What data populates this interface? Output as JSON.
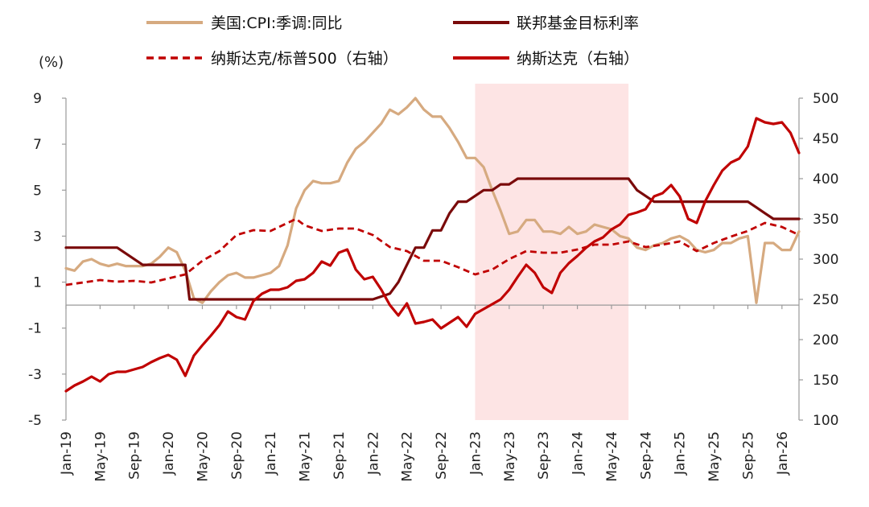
{
  "chart_data": {
    "type": "line",
    "unit_left": "(%)",
    "left_axis": {
      "min": -5,
      "max": 9,
      "ticks": [
        9,
        7,
        5,
        3,
        1,
        -1,
        -3,
        -5
      ]
    },
    "right_axis": {
      "min": 100,
      "max": 500,
      "ticks": [
        500,
        450,
        400,
        350,
        300,
        250,
        200,
        150,
        100
      ]
    },
    "x_ticks": [
      "Jan-19",
      "May-19",
      "Sep-19",
      "Jan-20",
      "May-20",
      "Sep-20",
      "Jan-21",
      "May-21",
      "Sep-21",
      "Jan-22",
      "May-22",
      "Sep-22",
      "Jan-23",
      "May-23",
      "Sep-23",
      "Jan-24",
      "May-24",
      "Sep-24",
      "Jan-25",
      "May-25",
      "Sep-25",
      "Jan-26"
    ],
    "shaded_region": {
      "start_month": 48,
      "end_month": 66,
      "color": "#fde4e4"
    },
    "zero_line": 0,
    "legend": [
      {
        "label": "美国:CPI:季调:同比",
        "color": "#d6aa80",
        "style": "solid"
      },
      {
        "label": "联邦基金目标利率",
        "color": "#7a0a0a",
        "style": "solid"
      },
      {
        "label": "纳斯达克/标普500（右轴）",
        "color": "#c00000",
        "style": "dashed"
      },
      {
        "label": "纳斯达克（右轴）",
        "color": "#c00000",
        "style": "solid"
      }
    ],
    "series": [
      {
        "name": "美国:CPI:季调:同比",
        "axis": "left",
        "color": "#d6aa80",
        "width": 3.2,
        "dash": "",
        "points": [
          [
            0,
            1.6
          ],
          [
            1,
            1.5
          ],
          [
            2,
            1.9
          ],
          [
            3,
            2.0
          ],
          [
            4,
            1.8
          ],
          [
            5,
            1.7
          ],
          [
            6,
            1.8
          ],
          [
            7,
            1.7
          ],
          [
            8,
            1.7
          ],
          [
            9,
            1.7
          ],
          [
            10,
            1.8
          ],
          [
            11,
            2.1
          ],
          [
            12,
            2.5
          ],
          [
            13,
            2.3
          ],
          [
            14,
            1.5
          ],
          [
            15,
            0.3
          ],
          [
            16,
            0.1
          ],
          [
            17,
            0.6
          ],
          [
            18,
            1.0
          ],
          [
            19,
            1.3
          ],
          [
            20,
            1.4
          ],
          [
            21,
            1.2
          ],
          [
            22,
            1.2
          ],
          [
            23,
            1.3
          ],
          [
            24,
            1.4
          ],
          [
            25,
            1.7
          ],
          [
            26,
            2.6
          ],
          [
            27,
            4.2
          ],
          [
            28,
            5.0
          ],
          [
            29,
            5.4
          ],
          [
            30,
            5.3
          ],
          [
            31,
            5.3
          ],
          [
            32,
            5.4
          ],
          [
            33,
            6.2
          ],
          [
            34,
            6.8
          ],
          [
            35,
            7.1
          ],
          [
            36,
            7.5
          ],
          [
            37,
            7.9
          ],
          [
            38,
            8.5
          ],
          [
            39,
            8.3
          ],
          [
            40,
            8.6
          ],
          [
            41,
            9.0
          ],
          [
            42,
            8.5
          ],
          [
            43,
            8.2
          ],
          [
            44,
            8.2
          ],
          [
            45,
            7.7
          ],
          [
            46,
            7.1
          ],
          [
            47,
            6.4
          ],
          [
            48,
            6.4
          ],
          [
            49,
            6.0
          ],
          [
            50,
            5.0
          ],
          [
            51,
            4.1
          ],
          [
            52,
            3.1
          ],
          [
            53,
            3.2
          ],
          [
            54,
            3.7
          ],
          [
            55,
            3.7
          ],
          [
            56,
            3.2
          ],
          [
            57,
            3.2
          ],
          [
            58,
            3.1
          ],
          [
            59,
            3.4
          ],
          [
            60,
            3.1
          ],
          [
            61,
            3.2
          ],
          [
            62,
            3.5
          ],
          [
            63,
            3.4
          ],
          [
            64,
            3.3
          ],
          [
            65,
            3.0
          ],
          [
            66,
            2.9
          ],
          [
            67,
            2.5
          ],
          [
            68,
            2.4
          ],
          [
            69,
            2.6
          ],
          [
            70,
            2.7
          ],
          [
            71,
            2.9
          ],
          [
            72,
            3.0
          ],
          [
            73,
            2.8
          ],
          [
            74,
            2.4
          ],
          [
            75,
            2.3
          ],
          [
            76,
            2.4
          ],
          [
            77,
            2.7
          ],
          [
            78,
            2.7
          ],
          [
            79,
            2.9
          ],
          [
            80,
            3.0
          ],
          [
            81,
            0.1
          ],
          [
            82,
            2.7
          ],
          [
            83,
            2.7
          ],
          [
            84,
            2.4
          ],
          [
            85,
            2.4
          ],
          [
            86,
            3.2
          ]
        ]
      },
      {
        "name": "联邦基金目标利率",
        "axis": "left",
        "color": "#7a0a0a",
        "width": 3.2,
        "dash": "",
        "points": [
          [
            0,
            2.5
          ],
          [
            6,
            2.5
          ],
          [
            9,
            1.75
          ],
          [
            14,
            1.75
          ],
          [
            14.5,
            0.25
          ],
          [
            36,
            0.25
          ],
          [
            38,
            0.5
          ],
          [
            39,
            1.0
          ],
          [
            40,
            1.75
          ],
          [
            41,
            2.5
          ],
          [
            42,
            2.5
          ],
          [
            43,
            3.25
          ],
          [
            44,
            3.25
          ],
          [
            45,
            4.0
          ],
          [
            46,
            4.5
          ],
          [
            47,
            4.5
          ],
          [
            48,
            4.75
          ],
          [
            49,
            5.0
          ],
          [
            50,
            5.0
          ],
          [
            51,
            5.25
          ],
          [
            52,
            5.25
          ],
          [
            53,
            5.5
          ],
          [
            66,
            5.5
          ],
          [
            67,
            5.0
          ],
          [
            68,
            4.75
          ],
          [
            69,
            4.5
          ],
          [
            80,
            4.5
          ],
          [
            81,
            4.25
          ],
          [
            82,
            4.0
          ],
          [
            83,
            3.75
          ],
          [
            86,
            3.75
          ]
        ]
      },
      {
        "name": "纳斯达克/标普500（右轴）",
        "axis": "right",
        "color": "#c00000",
        "width": 2.8,
        "dash": "8,5",
        "points": [
          [
            0,
            268
          ],
          [
            2,
            271
          ],
          [
            4,
            274
          ],
          [
            6,
            272
          ],
          [
            8,
            273
          ],
          [
            10,
            271
          ],
          [
            12,
            276
          ],
          [
            14,
            281
          ],
          [
            16,
            298
          ],
          [
            18,
            310
          ],
          [
            20,
            330
          ],
          [
            22,
            336
          ],
          [
            24,
            335
          ],
          [
            26,
            345
          ],
          [
            27,
            350
          ],
          [
            28,
            342
          ],
          [
            30,
            335
          ],
          [
            32,
            338
          ],
          [
            34,
            338
          ],
          [
            36,
            330
          ],
          [
            38,
            315
          ],
          [
            40,
            310
          ],
          [
            42,
            298
          ],
          [
            44,
            298
          ],
          [
            46,
            290
          ],
          [
            48,
            281
          ],
          [
            50,
            287
          ],
          [
            52,
            300
          ],
          [
            54,
            310
          ],
          [
            56,
            308
          ],
          [
            58,
            308
          ],
          [
            60,
            312
          ],
          [
            62,
            318
          ],
          [
            64,
            318
          ],
          [
            66,
            322
          ],
          [
            68,
            315
          ],
          [
            70,
            318
          ],
          [
            72,
            322
          ],
          [
            74,
            310
          ],
          [
            76,
            320
          ],
          [
            78,
            328
          ],
          [
            80,
            335
          ],
          [
            82,
            345
          ],
          [
            84,
            340
          ],
          [
            86,
            330
          ]
        ]
      },
      {
        "name": "纳斯达克（右轴）",
        "axis": "right",
        "color": "#c00000",
        "width": 3.2,
        "dash": "",
        "points": [
          [
            0,
            136
          ],
          [
            1,
            143
          ],
          [
            2,
            148
          ],
          [
            3,
            154
          ],
          [
            4,
            148
          ],
          [
            5,
            157
          ],
          [
            6,
            160
          ],
          [
            7,
            160
          ],
          [
            8,
            163
          ],
          [
            9,
            166
          ],
          [
            10,
            172
          ],
          [
            11,
            177
          ],
          [
            12,
            181
          ],
          [
            13,
            175
          ],
          [
            14,
            155
          ],
          [
            15,
            180
          ],
          [
            16,
            193
          ],
          [
            17,
            205
          ],
          [
            18,
            218
          ],
          [
            19,
            235
          ],
          [
            20,
            228
          ],
          [
            21,
            225
          ],
          [
            22,
            248
          ],
          [
            23,
            257
          ],
          [
            24,
            262
          ],
          [
            25,
            262
          ],
          [
            26,
            265
          ],
          [
            27,
            273
          ],
          [
            28,
            275
          ],
          [
            29,
            283
          ],
          [
            30,
            297
          ],
          [
            31,
            292
          ],
          [
            32,
            308
          ],
          [
            33,
            312
          ],
          [
            34,
            287
          ],
          [
            35,
            275
          ],
          [
            36,
            278
          ],
          [
            37,
            262
          ],
          [
            38,
            243
          ],
          [
            39,
            230
          ],
          [
            40,
            245
          ],
          [
            41,
            220
          ],
          [
            42,
            222
          ],
          [
            43,
            225
          ],
          [
            44,
            214
          ],
          [
            45,
            221
          ],
          [
            46,
            228
          ],
          [
            47,
            216
          ],
          [
            48,
            232
          ],
          [
            49,
            238
          ],
          [
            50,
            244
          ],
          [
            51,
            250
          ],
          [
            52,
            262
          ],
          [
            53,
            278
          ],
          [
            54,
            293
          ],
          [
            55,
            283
          ],
          [
            56,
            265
          ],
          [
            57,
            258
          ],
          [
            58,
            283
          ],
          [
            59,
            295
          ],
          [
            60,
            304
          ],
          [
            61,
            314
          ],
          [
            62,
            322
          ],
          [
            63,
            327
          ],
          [
            64,
            337
          ],
          [
            65,
            343
          ],
          [
            66,
            355
          ],
          [
            67,
            358
          ],
          [
            68,
            362
          ],
          [
            69,
            378
          ],
          [
            70,
            382
          ],
          [
            71,
            392
          ],
          [
            72,
            378
          ],
          [
            73,
            350
          ],
          [
            74,
            345
          ],
          [
            75,
            372
          ],
          [
            76,
            392
          ],
          [
            77,
            410
          ],
          [
            78,
            420
          ],
          [
            79,
            425
          ],
          [
            80,
            440
          ],
          [
            81,
            475
          ],
          [
            82,
            470
          ],
          [
            83,
            468
          ],
          [
            84,
            470
          ],
          [
            85,
            457
          ],
          [
            86,
            432
          ]
        ]
      }
    ]
  }
}
